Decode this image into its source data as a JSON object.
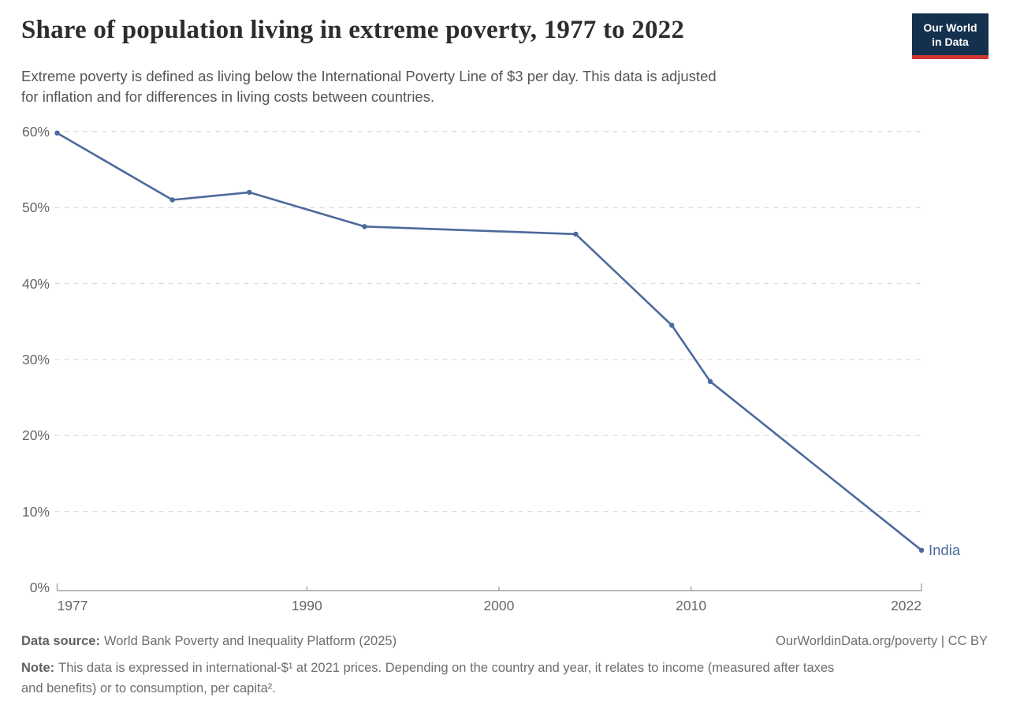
{
  "header": {
    "title": "Share of population living in extreme poverty, 1977 to 2022",
    "subtitle_line1": "Extreme poverty is defined as living below the International Poverty Line of $3 per day. This data is adjusted",
    "subtitle_line2": "for inflation and for differences in living costs between countries."
  },
  "logo": {
    "line1": "Our World",
    "line2": "in Data"
  },
  "chart_data": {
    "type": "line",
    "title": "Share of population living in extreme poverty, 1977 to 2022",
    "xlabel": "",
    "ylabel": "",
    "xlim": [
      1977,
      2022
    ],
    "ylim": [
      0,
      60
    ],
    "grid": "horizontal-dashed",
    "legend_position": "end-of-line-label",
    "x_ticks": [
      {
        "label": "1977",
        "value": 1977
      },
      {
        "label": "1990",
        "value": 1990
      },
      {
        "label": "2000",
        "value": 2000
      },
      {
        "label": "2010",
        "value": 2010
      },
      {
        "label": "2022",
        "value": 2022
      }
    ],
    "y_ticks": [
      {
        "label": "0%",
        "value": 0
      },
      {
        "label": "10%",
        "value": 10
      },
      {
        "label": "20%",
        "value": 20
      },
      {
        "label": "30%",
        "value": 30
      },
      {
        "label": "40%",
        "value": 40
      },
      {
        "label": "50%",
        "value": 50
      },
      {
        "label": "60%",
        "value": 60
      }
    ],
    "series": [
      {
        "name": "India",
        "color": "#4C6A9C",
        "x": [
          1977,
          1983,
          1987,
          1993,
          2004,
          2009,
          2011,
          2022
        ],
        "values": [
          59.8,
          51.0,
          52.0,
          47.5,
          46.5,
          34.5,
          27.1,
          4.9
        ]
      }
    ]
  },
  "footer": {
    "datasource_label": "Data source:",
    "datasource_text": "World Bank Poverty and Inequality Platform (2025)",
    "rights": "OurWorldinData.org/poverty | CC BY",
    "note_label": "Note:",
    "note_line1": "This data is expressed in international-$¹ at 2021 prices. Depending on the country and year, it relates to income (measured after taxes",
    "note_line2": "and benefits) or to consumption, per capita²."
  },
  "colors": {
    "line": "#4C6A9C",
    "grid": "#dcdcdc",
    "axis": "#a3a3a3",
    "tick_text": "#666666",
    "title": "#2d2d2d",
    "subtitle": "#555555",
    "footer": "#6e6e6e",
    "logo_bg": "#14304F",
    "logo_accent": "#D0382F"
  }
}
